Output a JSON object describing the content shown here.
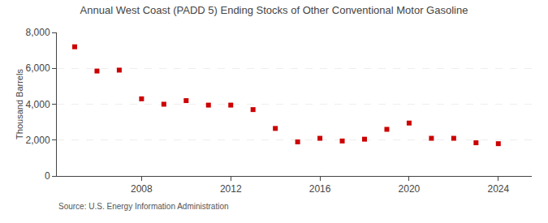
{
  "chart_data": {
    "type": "scatter",
    "title": "Annual West Coast (PADD 5) Ending Stocks of Other Conventional Motor Gasoline",
    "ylabel": "Thousand Barrels",
    "annotations": [
      "Source: U.S. Energy Information Administration"
    ],
    "x": [
      2005,
      2006,
      2007,
      2008,
      2009,
      2010,
      2011,
      2012,
      2013,
      2014,
      2015,
      2016,
      2017,
      2018,
      2019,
      2020,
      2021,
      2022,
      2023,
      2024
    ],
    "values": [
      7200,
      5850,
      5900,
      4300,
      4000,
      4200,
      3950,
      3950,
      3700,
      2650,
      1900,
      2100,
      1950,
      2050,
      2600,
      2950,
      2100,
      2100,
      1850,
      1800
    ],
    "color": "#cc0000",
    "marker": "square",
    "xlim": [
      2004.2,
      2025.5
    ],
    "xticks": [
      2008,
      2012,
      2016,
      2020,
      2024
    ],
    "ylim": [
      0,
      8000
    ],
    "yticks": [
      0,
      {
        "value": 2000,
        "label": "2,000"
      },
      {
        "value": 4000,
        "label": "4,000"
      },
      {
        "value": 6000,
        "label": "6,000"
      },
      {
        "value": 8000,
        "label": "8,000"
      }
    ],
    "grid": "y"
  }
}
